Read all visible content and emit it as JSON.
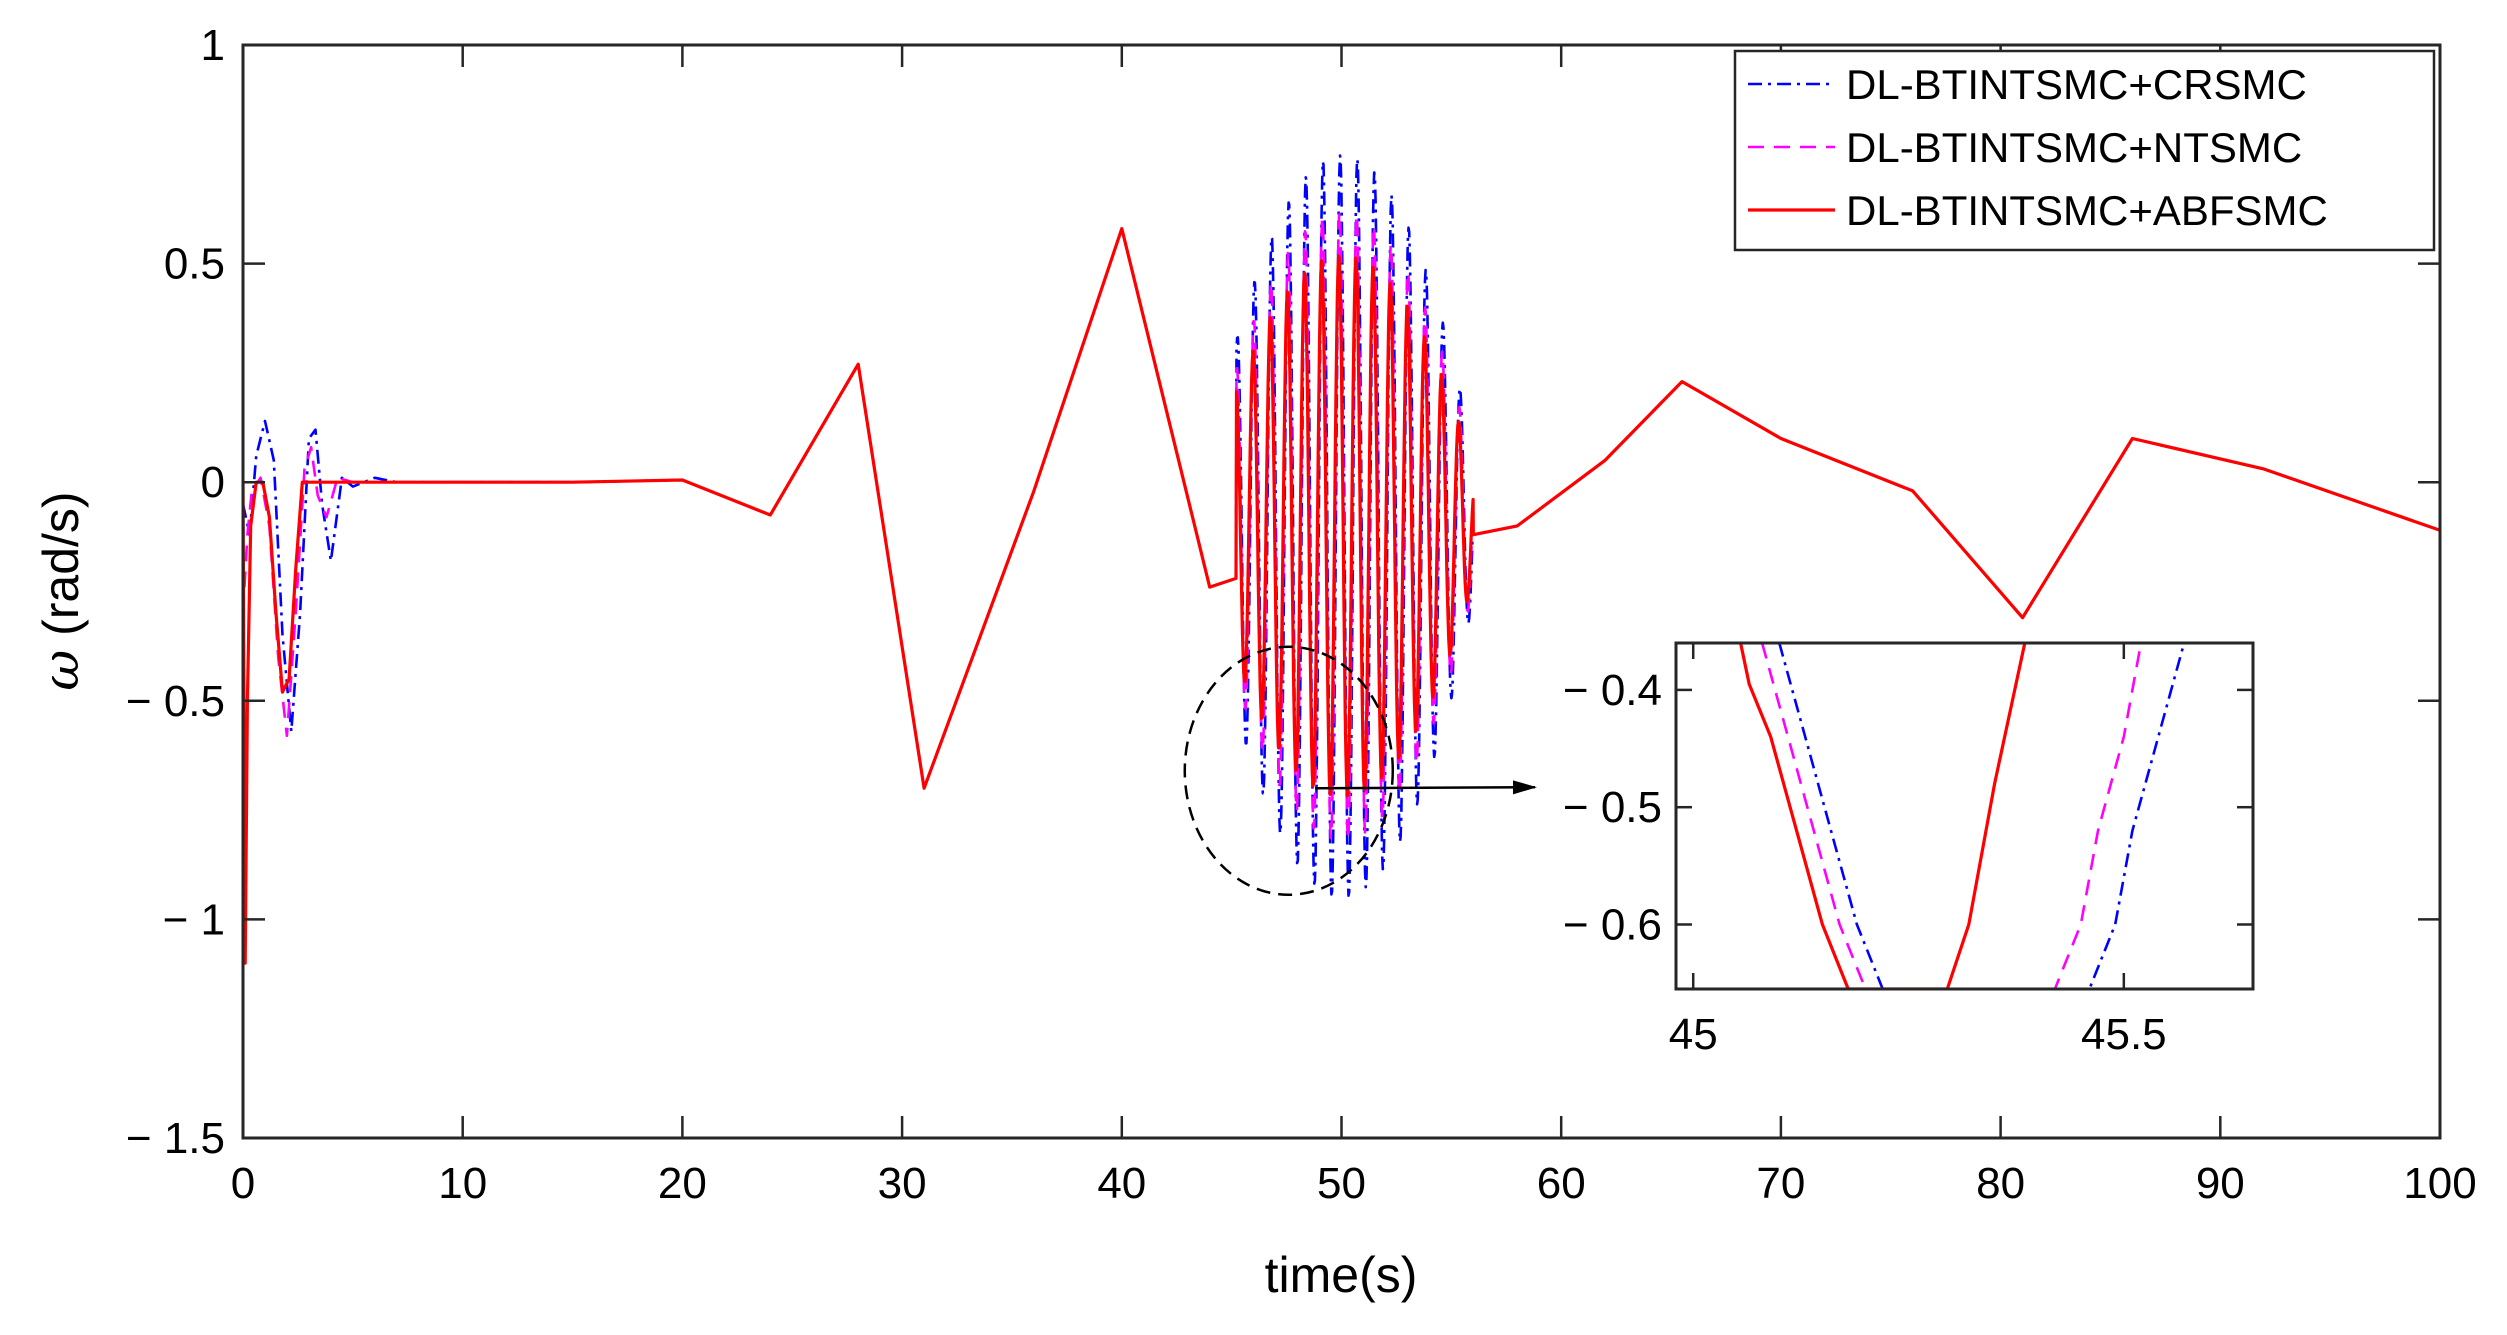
{
  "chart_data": {
    "type": "line",
    "xlabel": "time(s)",
    "ylabel_symbol": "ω",
    "ylabel_units": "(rad/s)",
    "xlim": [
      0,
      100
    ],
    "ylim": [
      -1.5,
      1
    ],
    "xticks": [
      0,
      10,
      20,
      30,
      40,
      50,
      60,
      70,
      80,
      90,
      100
    ],
    "yticks": [
      -1.5,
      -1,
      -0.5,
      0,
      0.5,
      1
    ],
    "xtick_labels": [
      "0",
      "10",
      "20",
      "30",
      "40",
      "50",
      "60",
      "70",
      "80",
      "90",
      "100"
    ],
    "ytick_labels": [
      "− 1.5",
      "− 1",
      "− 0.5",
      "0",
      "0.5",
      "1"
    ],
    "grid": false,
    "legend_position": "top-right",
    "series": [
      {
        "name": "DL-BTINTSMC+CRSMC",
        "color": "#0000ff",
        "style": "dash-dot",
        "x": [
          0,
          0.3,
          0.6,
          1.0,
          1.4,
          1.8,
          2.2,
          2.6,
          3.0,
          3.3,
          3.6,
          4.0,
          4.5,
          5.0,
          6.0,
          7.0,
          10,
          15,
          20,
          24,
          28,
          31,
          36,
          40,
          44,
          45.2,
          56,
          58,
          62,
          65.5,
          70,
          76,
          81,
          86,
          92,
          100
        ],
        "y": [
          -0.05,
          -0.12,
          0.06,
          0.14,
          0.05,
          -0.35,
          -0.57,
          -0.3,
          0.1,
          0.12,
          -0.05,
          -0.18,
          0.01,
          -0.01,
          0.01,
          0.0,
          0.0,
          0.0,
          0.005,
          -0.075,
          0.27,
          -0.7,
          -0.02,
          0.58,
          -0.24,
          -0.22,
          -0.12,
          -0.1,
          0.05,
          0.23,
          0.1,
          -0.02,
          -0.31,
          0.1,
          0.03,
          -0.11
        ]
      },
      {
        "name": "DL-BTINTSMC+NTSMC",
        "color": "#ff00ff",
        "style": "dashed",
        "x": [
          0,
          0.2,
          0.4,
          0.8,
          1.2,
          1.6,
          2.0,
          2.4,
          2.8,
          3.1,
          3.4,
          3.8,
          4.3,
          5.0,
          6.0,
          10,
          15,
          20,
          24,
          28,
          31,
          36,
          40,
          44,
          45.2,
          56,
          58,
          62,
          65.5,
          70,
          76,
          81,
          86,
          92,
          100
        ],
        "y": [
          -0.3,
          -0.12,
          -0.02,
          0.01,
          -0.1,
          -0.4,
          -0.58,
          -0.3,
          0.03,
          0.08,
          -0.03,
          -0.08,
          0.01,
          0.0,
          0.0,
          0.0,
          0.0,
          0.005,
          -0.075,
          0.27,
          -0.7,
          -0.02,
          0.58,
          -0.24,
          -0.22,
          -0.12,
          -0.1,
          0.05,
          0.23,
          0.1,
          -0.02,
          -0.31,
          0.1,
          0.03,
          -0.11
        ]
      },
      {
        "name": "DL-BTINTSMC+ABFSMC",
        "color": "#ff0000",
        "style": "solid",
        "x": [
          0,
          0.1,
          0.2,
          0.35,
          0.6,
          0.9,
          1.2,
          1.5,
          1.8,
          2.1,
          2.4,
          2.7,
          3.0,
          3.5,
          4.0,
          5.0,
          10,
          15,
          20,
          24,
          28,
          31,
          36,
          40,
          44,
          45.2,
          56,
          58,
          62,
          65.5,
          70,
          76,
          81,
          86,
          92,
          100
        ],
        "y": [
          0.0,
          -1.1,
          -0.5,
          -0.1,
          0.0,
          0.0,
          -0.08,
          -0.3,
          -0.48,
          -0.45,
          -0.2,
          0.0,
          0.0,
          0.0,
          0.0,
          0.0,
          0.0,
          0.0,
          0.005,
          -0.075,
          0.27,
          -0.7,
          -0.02,
          0.58,
          -0.24,
          -0.22,
          -0.12,
          -0.1,
          0.05,
          0.23,
          0.1,
          -0.02,
          -0.31,
          0.1,
          0.03,
          -0.11
        ]
      }
    ],
    "oscillation_segment": {
      "t_start": 45.2,
      "t_end": 56.0,
      "period": 0.78,
      "center": -0.1,
      "amplitude_peak": {
        "CRSMC": 0.85,
        "NTSMC": 0.72,
        "ABFSMC": 0.62
      }
    },
    "annotation": {
      "circle_center": [
        47.6,
        -0.66
      ],
      "arrow_from": [
        48.8,
        -0.7
      ],
      "note": "zoom region"
    },
    "inset": {
      "xlim": [
        44.98,
        45.65
      ],
      "ylim": [
        -0.655,
        -0.36
      ],
      "xticks": [
        45,
        45.5
      ],
      "yticks": [
        -0.4,
        -0.5,
        -0.6
      ],
      "xtick_labels": [
        "45",
        "45.5"
      ],
      "ytick_labels": [
        "− 0.4",
        "− 0.5",
        "− 0.6"
      ],
      "series": [
        {
          "name": "DL-BTINTSMC+CRSMC",
          "color": "#0000ff",
          "style": "dash-dot",
          "x": [
            45.1,
            45.13,
            45.16,
            45.19,
            45.22,
            45.46,
            45.49,
            45.51,
            45.54,
            45.57
          ],
          "y": [
            -0.36,
            -0.44,
            -0.52,
            -0.6,
            -0.655,
            -0.655,
            -0.6,
            -0.52,
            -0.44,
            -0.36
          ]
        },
        {
          "name": "DL-BTINTSMC+NTSMC",
          "color": "#ff00ff",
          "style": "dashed",
          "x": [
            45.08,
            45.11,
            45.14,
            45.17,
            45.2,
            45.42,
            45.45,
            45.47,
            45.5,
            45.52
          ],
          "y": [
            -0.36,
            -0.44,
            -0.52,
            -0.6,
            -0.655,
            -0.655,
            -0.6,
            -0.52,
            -0.44,
            -0.36
          ]
        },
        {
          "name": "DL-BTINTSMC+ABFSMC",
          "color": "#ff0000",
          "style": "solid",
          "x": [
            45.055,
            45.065,
            45.09,
            45.12,
            45.15,
            45.18,
            45.295,
            45.32,
            45.35,
            45.385
          ],
          "y": [
            -0.36,
            -0.395,
            -0.44,
            -0.52,
            -0.6,
            -0.655,
            -0.655,
            -0.6,
            -0.48,
            -0.36
          ]
        }
      ]
    }
  }
}
